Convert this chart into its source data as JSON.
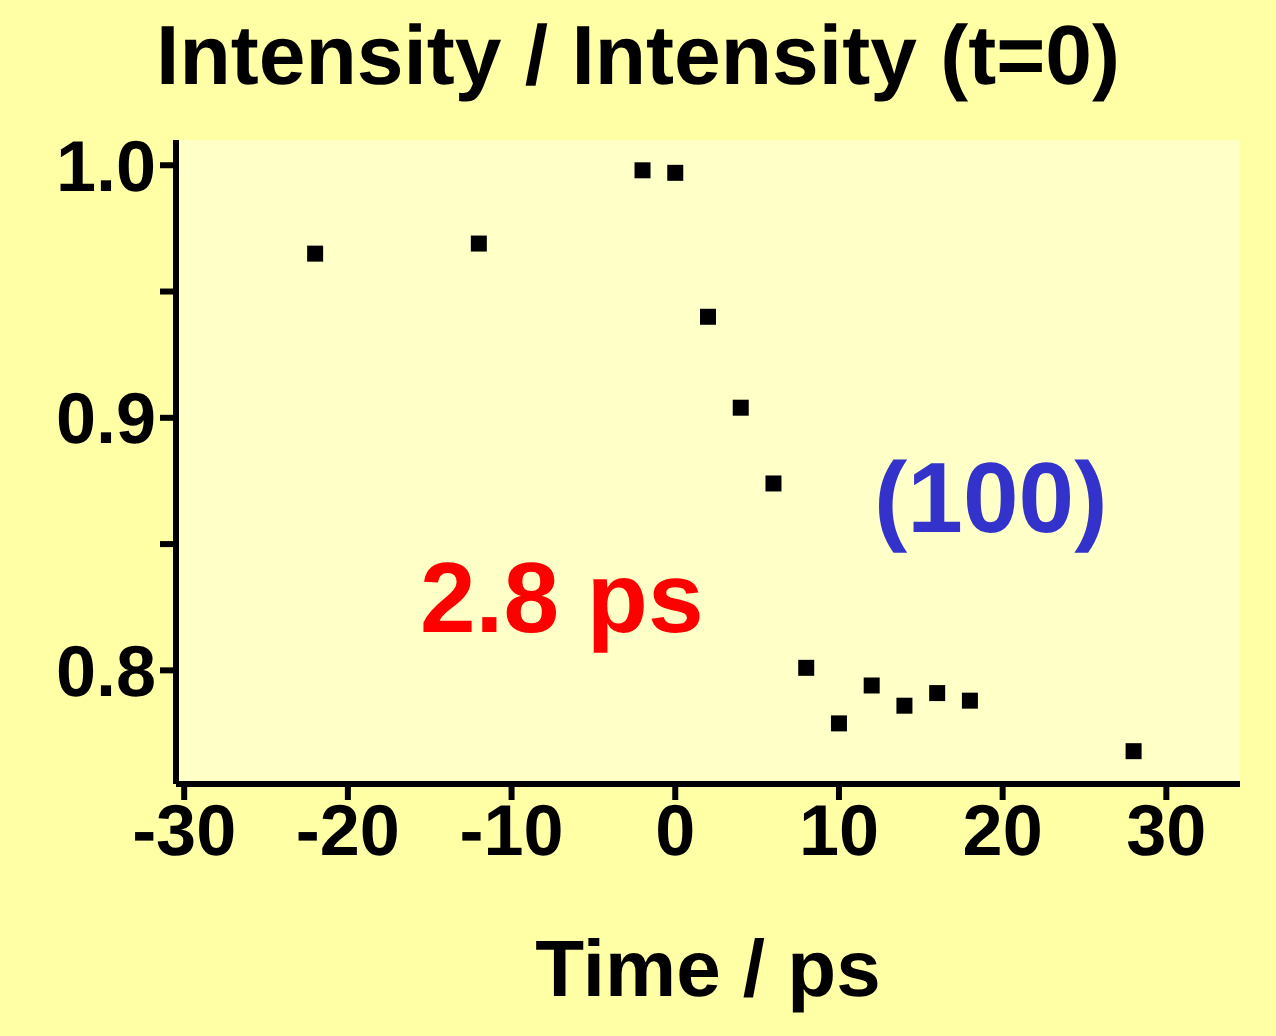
{
  "chart_data": {
    "type": "scatter",
    "title": "Intensity / Intensity (t=0)",
    "xlabel": "Time / ps",
    "x": [
      -22,
      -12,
      -2,
      0,
      2,
      4,
      6,
      8,
      10,
      12,
      14,
      16,
      18,
      28
    ],
    "series": [
      {
        "color": "#000000",
        "values": [
          0.965,
          0.969,
          0.998,
          0.997,
          0.94,
          0.904,
          0.874,
          0.801,
          0.779,
          0.794,
          0.786,
          0.791,
          0.788,
          0.768
        ]
      }
    ],
    "xlim": [
      -30.5,
      34.5
    ],
    "xticks": [
      -30,
      -20,
      -10,
      0,
      10,
      20,
      30
    ],
    "ylim": [
      0.755,
      1.01
    ],
    "yticks": [
      {
        "value": 0.8,
        "label": "0.8"
      },
      {
        "value": 0.85,
        "label": null
      },
      {
        "value": 0.9,
        "label": "0.9"
      },
      {
        "value": 0.95,
        "label": null
      },
      {
        "value": 1,
        "label": "1.0"
      }
    ],
    "marker": "square",
    "grid": false,
    "annotations": [
      "2.8 ps",
      "(100)"
    ]
  }
}
